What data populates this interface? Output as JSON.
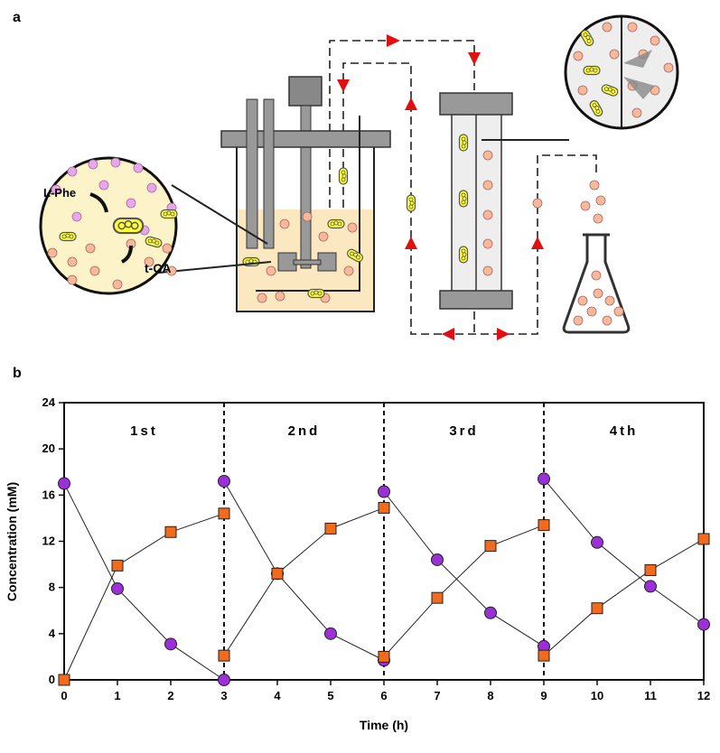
{
  "panel_a": {
    "label": "a",
    "text_substrate": "L-Phe",
    "text_product": "t-CA"
  },
  "chart_data": {
    "type": "line",
    "panel_label": "b",
    "xlabel": "Time (h)",
    "ylabel": "Concentration (mM)",
    "x": [
      0,
      1,
      2,
      3,
      null,
      3,
      4,
      5,
      6,
      null,
      6,
      7,
      8,
      9,
      null,
      9,
      10,
      11,
      12
    ],
    "xlim": [
      0,
      12
    ],
    "xticks": [
      0,
      1,
      2,
      3,
      4,
      5,
      6,
      7,
      8,
      9,
      10,
      11,
      12
    ],
    "ylim": [
      0,
      24
    ],
    "yticks": [
      0,
      4,
      8,
      12,
      16,
      20,
      24
    ],
    "dividers": [
      3,
      6,
      9
    ],
    "annotations": [
      "1st",
      "2nd",
      "3rd",
      "4th"
    ],
    "series": [
      {
        "color": "#9b30d9",
        "marker": "circle",
        "values": [
          17.0,
          7.9,
          3.1,
          0.0,
          null,
          17.2,
          9.2,
          4.0,
          1.7,
          null,
          16.3,
          10.4,
          5.8,
          2.9,
          null,
          17.4,
          11.9,
          8.1,
          4.8
        ]
      },
      {
        "color": "#f26a1b",
        "marker": "square",
        "values": [
          0.0,
          9.9,
          12.8,
          14.4,
          null,
          2.1,
          9.2,
          13.1,
          14.9,
          null,
          2.0,
          7.1,
          11.6,
          13.4,
          null,
          2.1,
          6.2,
          9.5,
          12.2
        ]
      }
    ]
  }
}
